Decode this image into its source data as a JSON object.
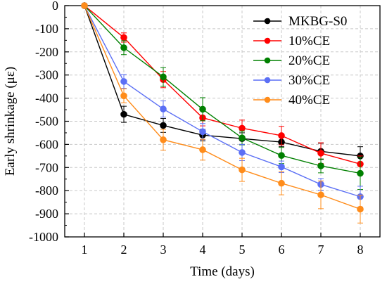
{
  "chart_data": {
    "type": "line",
    "title": "",
    "xlabel": "Time (days)",
    "ylabel": "Early shrinkage (με)",
    "x": [
      1,
      2,
      3,
      4,
      5,
      6,
      7,
      8
    ],
    "xlim": [
      0.5,
      8.5
    ],
    "ylim": [
      -1000,
      0
    ],
    "xticks": [
      "1",
      "2",
      "3",
      "4",
      "5",
      "6",
      "7",
      "8"
    ],
    "yticks": [
      "0",
      "-100",
      "-200",
      "-300",
      "-400",
      "-500",
      "-600",
      "-700",
      "-800",
      "-900",
      "-1000"
    ],
    "grid": true,
    "legend_position": "top-right",
    "series": [
      {
        "name": "MKBG-S0",
        "color": "#000000",
        "values": [
          0,
          -470,
          -518,
          -560,
          -575,
          -590,
          -630,
          -650
        ],
        "errors": [
          0,
          35,
          30,
          25,
          25,
          20,
          35,
          40
        ]
      },
      {
        "name": "10%CE",
        "color": "#ff0000",
        "values": [
          0,
          -138,
          -320,
          -485,
          -530,
          -562,
          -638,
          -685
        ],
        "errors": [
          0,
          20,
          35,
          35,
          35,
          40,
          45,
          35
        ]
      },
      {
        "name": "20%CE",
        "color": "#008000",
        "values": [
          0,
          -182,
          -308,
          -448,
          -572,
          -648,
          -693,
          -725
        ],
        "errors": [
          0,
          30,
          40,
          50,
          30,
          35,
          30,
          70
        ]
      },
      {
        "name": "30%CE",
        "color": "#5b6ff5",
        "values": [
          0,
          -328,
          -447,
          -545,
          -635,
          -697,
          -773,
          -826
        ],
        "errors": [
          0,
          30,
          35,
          35,
          35,
          25,
          25,
          45
        ]
      },
      {
        "name": "40%CE",
        "color": "#ff8c1a",
        "values": [
          0,
          -390,
          -580,
          -623,
          -710,
          -768,
          -818,
          -880
        ],
        "errors": [
          0,
          30,
          45,
          45,
          50,
          50,
          60,
          60
        ]
      }
    ]
  }
}
